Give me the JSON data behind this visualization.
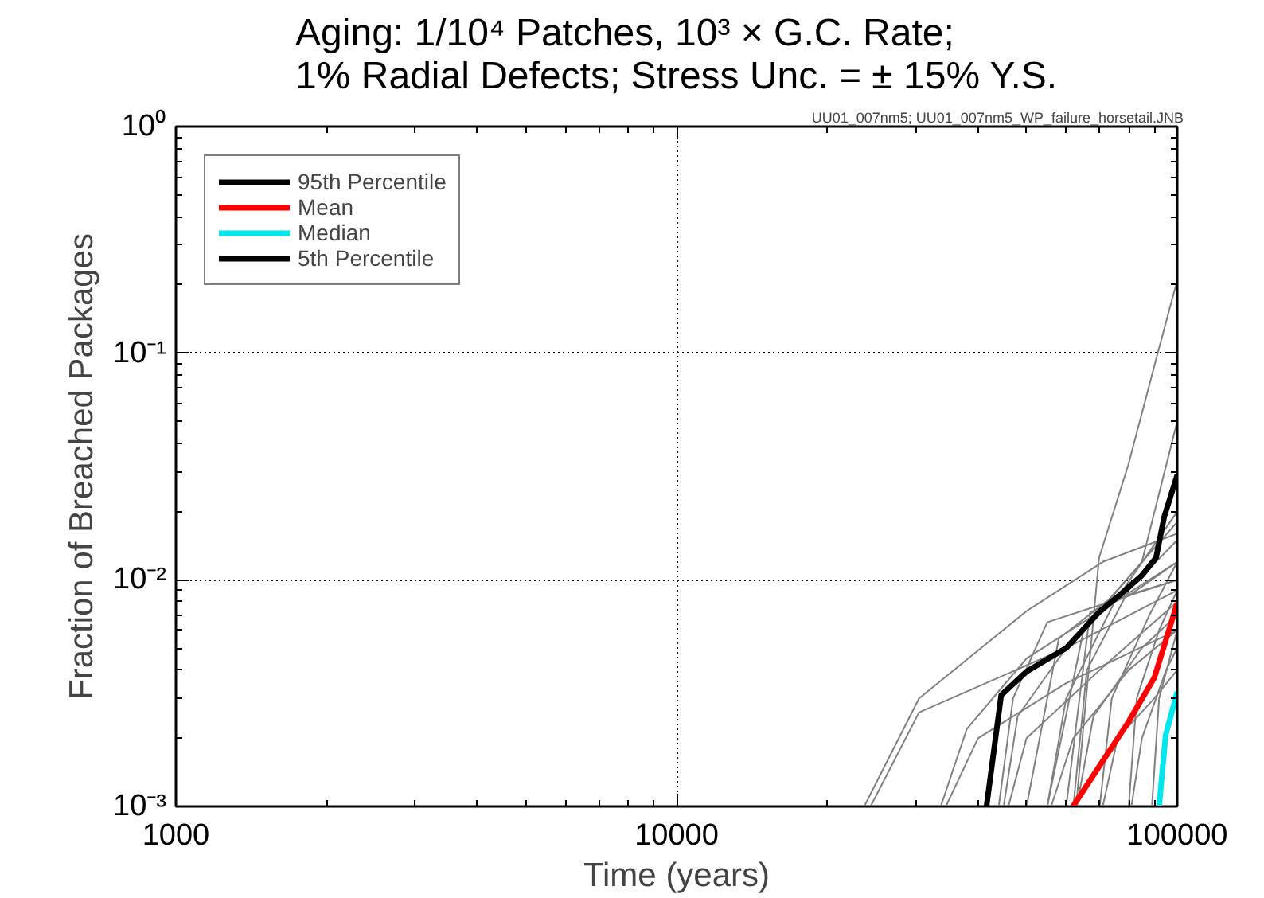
{
  "chart_data": {
    "type": "line",
    "title": "Aging: 1/10⁴ Patches, 10³ × G.C. Rate;\n1% Radial Defects; Stress Unc. = ± 15% Y.S.",
    "xlabel": "Time (years)",
    "ylabel": "Fraction of Breached Packages",
    "annotations": [
      "UU01_007nm5; UU01_007nm5_WP_failure_horsetail.JNB"
    ],
    "log": "xy",
    "grid": true,
    "legend": "top left",
    "line_style": "solid",
    "marker": "none",
    "xlim": [
      1000,
      100000
    ],
    "ylim": [
      0.001,
      1
    ],
    "xticks": [
      1000,
      10000,
      100000
    ],
    "yticks": [
      {
        "value": 0.001,
        "label": "10⁻³"
      },
      {
        "value": 0.01,
        "label": "10⁻²"
      },
      {
        "value": 0.1,
        "label": "10⁻¹"
      },
      {
        "value": 1,
        "label": "10⁰"
      }
    ],
    "series": [
      {
        "color": "#808080",
        "x": [
          23700,
          30500,
          50100,
          71000,
          100000
        ],
        "values": [
          0.001,
          0.003,
          0.0073,
          0.012,
          0.016
        ]
      },
      {
        "color": "#808080",
        "x": [
          24400,
          30500,
          60000,
          100000
        ],
        "values": [
          0.001,
          0.0026,
          0.005,
          0.009
        ]
      },
      {
        "color": "#808080",
        "x": [
          62800,
          69800,
          79800,
          91400,
          100000
        ],
        "values": [
          0.001,
          0.0125,
          0.032,
          0.1,
          0.21
        ]
      },
      {
        "color": "#808080",
        "x": [
          33700,
          38000,
          50000,
          100000
        ],
        "values": [
          0.001,
          0.0022,
          0.0045,
          0.012
        ]
      },
      {
        "color": "#808080",
        "x": [
          34500,
          40000,
          60000,
          100000
        ],
        "values": [
          0.001,
          0.002,
          0.0035,
          0.006
        ]
      },
      {
        "color": "#808080",
        "x": [
          45000,
          48000,
          60000,
          100000
        ],
        "values": [
          0.001,
          0.0025,
          0.005,
          0.018
        ]
      },
      {
        "color": "#808080",
        "x": [
          46000,
          50000,
          70000,
          100000
        ],
        "values": [
          0.001,
          0.002,
          0.004,
          0.008
        ]
      },
      {
        "color": "#808080",
        "x": [
          44000,
          47000,
          55000,
          100000
        ],
        "values": [
          0.001,
          0.003,
          0.0065,
          0.01
        ]
      },
      {
        "color": "#808080",
        "x": [
          55000,
          60000,
          75000,
          100000
        ],
        "values": [
          0.001,
          0.003,
          0.008,
          0.02
        ]
      },
      {
        "color": "#808080",
        "x": [
          56000,
          62000,
          80000,
          100000
        ],
        "values": [
          0.001,
          0.002,
          0.004,
          0.006
        ]
      },
      {
        "color": "#808080",
        "x": [
          62000,
          66000,
          80000,
          100000
        ],
        "values": [
          0.001,
          0.004,
          0.009,
          0.015
        ]
      },
      {
        "color": "#808080",
        "x": [
          63000,
          68000,
          85000,
          100000
        ],
        "values": [
          0.001,
          0.0025,
          0.005,
          0.007
        ]
      },
      {
        "color": "#808080",
        "x": [
          70000,
          74000,
          88000,
          100000
        ],
        "values": [
          0.001,
          0.003,
          0.007,
          0.012
        ]
      },
      {
        "color": "#808080",
        "x": [
          71000,
          76000,
          90000,
          100000
        ],
        "values": [
          0.001,
          0.002,
          0.003,
          0.004
        ]
      },
      {
        "color": "#808080",
        "x": [
          80000,
          83000,
          92000,
          100000
        ],
        "values": [
          0.001,
          0.003,
          0.006,
          0.009
        ]
      },
      {
        "color": "#808080",
        "x": [
          81000,
          85000,
          95000,
          100000
        ],
        "values": [
          0.001,
          0.002,
          0.004,
          0.005
        ]
      },
      {
        "color": "#808080",
        "x": [
          89000,
          92000,
          100000
        ],
        "values": [
          0.001,
          0.003,
          0.006
        ]
      },
      {
        "color": "#808080",
        "x": [
          55000,
          65000,
          85000,
          100000
        ],
        "values": [
          0.001,
          0.006,
          0.012,
          0.05
        ]
      },
      {
        "color": "#808080",
        "x": [
          60000,
          67000,
          80000,
          100000
        ],
        "values": [
          0.001,
          0.0072,
          0.0085,
          0.012
        ]
      },
      {
        "color": "#808080",
        "x": [
          50000,
          58000,
          72000,
          100000
        ],
        "values": [
          0.001,
          0.0055,
          0.008,
          0.01
        ]
      },
      {
        "name": "95th Percentile",
        "color": "#000000",
        "x": [
          41600,
          44500,
          50100,
          60000,
          69800,
          76900,
          84800,
          90700,
          94200,
          100000
        ],
        "values": [
          0.001,
          0.0031,
          0.00395,
          0.005,
          0.0072,
          0.0086,
          0.0104,
          0.0125,
          0.019,
          0.029
        ]
      },
      {
        "name": "Mean",
        "color": "#ff0000",
        "x": [
          61900,
          79800,
          90000,
          100000
        ],
        "values": [
          0.001,
          0.00235,
          0.0037,
          0.0079
        ]
      },
      {
        "name": "Median",
        "color": "#00e5ee",
        "x": [
          92000,
          94800,
          100000
        ],
        "values": [
          0.001,
          0.00206,
          0.0032
        ]
      },
      {
        "name": "5th Percentile",
        "color": "#000000"
      }
    ]
  }
}
